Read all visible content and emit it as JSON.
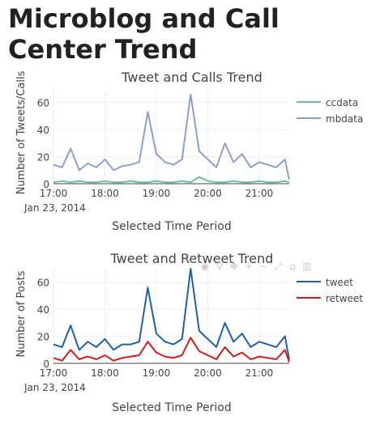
{
  "page": {
    "title": "Microblog and Call Center Trend"
  },
  "charts": [
    {
      "title": "Tweet and Calls Trend",
      "ylabel": "Number of Tweets/Calls",
      "xlabel": "Selected Time Period",
      "date_label": "Jan 23, 2014",
      "yticks": [
        "0",
        "20",
        "40",
        "60"
      ],
      "xticks": [
        "17:00",
        "18:00",
        "19:00",
        "20:00",
        "21:00"
      ],
      "legend": [
        "ccdata",
        "mbdata"
      ]
    },
    {
      "title": "Tweet and Retweet Trend",
      "ylabel": "Number of Posts",
      "xlabel": "Selected Time Period",
      "date_label": "Jan 23, 2014",
      "yticks": [
        "0",
        "20",
        "40",
        "60"
      ],
      "xticks": [
        "17:00",
        "18:00",
        "19:00",
        "20:00",
        "21:00"
      ],
      "legend": [
        "tweet",
        "retweet"
      ]
    }
  ],
  "modebar_icons": [
    "camera-icon",
    "zoom-icon",
    "pan-icon",
    "zoom-in-icon",
    "zoom-out-icon",
    "autoscale-icon",
    "home-icon",
    "plotly-logo-icon"
  ],
  "chart_data": [
    {
      "type": "line",
      "title": "Tweet and Calls Trend",
      "xlabel": "Selected Time Period",
      "ylabel": "Number of Tweets/Calls",
      "xlim": [
        "17:00",
        "21:35"
      ],
      "ylim": [
        0,
        70
      ],
      "x": [
        "17:00",
        "17:10",
        "17:20",
        "17:30",
        "17:40",
        "17:50",
        "18:00",
        "18:10",
        "18:20",
        "18:30",
        "18:40",
        "18:50",
        "19:00",
        "19:10",
        "19:20",
        "19:30",
        "19:40",
        "19:50",
        "20:00",
        "20:10",
        "20:20",
        "20:30",
        "20:40",
        "20:50",
        "21:00",
        "21:10",
        "21:20",
        "21:30",
        "21:35"
      ],
      "series": [
        {
          "name": "ccdata",
          "color": "#66c2a5",
          "values": [
            1,
            2,
            1,
            2,
            1,
            1,
            2,
            1,
            1,
            2,
            1,
            1,
            2,
            1,
            1,
            2,
            1,
            5,
            2,
            1,
            1,
            2,
            1,
            1,
            2,
            1,
            1,
            2,
            1
          ]
        },
        {
          "name": "mbdata",
          "color": "#8da0cb",
          "values": [
            14,
            12,
            26,
            10,
            15,
            12,
            18,
            10,
            13,
            14,
            16,
            53,
            22,
            16,
            14,
            18,
            66,
            24,
            18,
            12,
            30,
            16,
            22,
            12,
            16,
            14,
            12,
            18,
            3
          ]
        }
      ],
      "legend": "top-right",
      "grid": true
    },
    {
      "type": "line",
      "title": "Tweet and Retweet Trend",
      "xlabel": "Selected Time Period",
      "ylabel": "Number of Posts",
      "xlim": [
        "17:00",
        "21:35"
      ],
      "ylim": [
        0,
        70
      ],
      "x": [
        "17:00",
        "17:10",
        "17:20",
        "17:30",
        "17:40",
        "17:50",
        "18:00",
        "18:10",
        "18:20",
        "18:30",
        "18:40",
        "18:50",
        "19:00",
        "19:10",
        "19:20",
        "19:30",
        "19:40",
        "19:50",
        "20:00",
        "20:10",
        "20:20",
        "20:30",
        "20:40",
        "20:50",
        "21:00",
        "21:10",
        "21:20",
        "21:30",
        "21:35"
      ],
      "series": [
        {
          "name": "tweet",
          "color": "#1f5fa8",
          "values": [
            14,
            12,
            28,
            10,
            16,
            12,
            18,
            10,
            14,
            14,
            16,
            56,
            22,
            16,
            14,
            18,
            70,
            24,
            18,
            12,
            30,
            16,
            22,
            12,
            16,
            14,
            12,
            20,
            3
          ]
        },
        {
          "name": "retweet",
          "color": "#d7191c",
          "values": [
            4,
            2,
            10,
            3,
            5,
            3,
            6,
            2,
            4,
            5,
            6,
            16,
            8,
            5,
            4,
            6,
            19,
            9,
            6,
            3,
            12,
            5,
            8,
            3,
            5,
            4,
            3,
            10,
            1
          ]
        }
      ],
      "legend": "top-right",
      "grid": true
    }
  ]
}
